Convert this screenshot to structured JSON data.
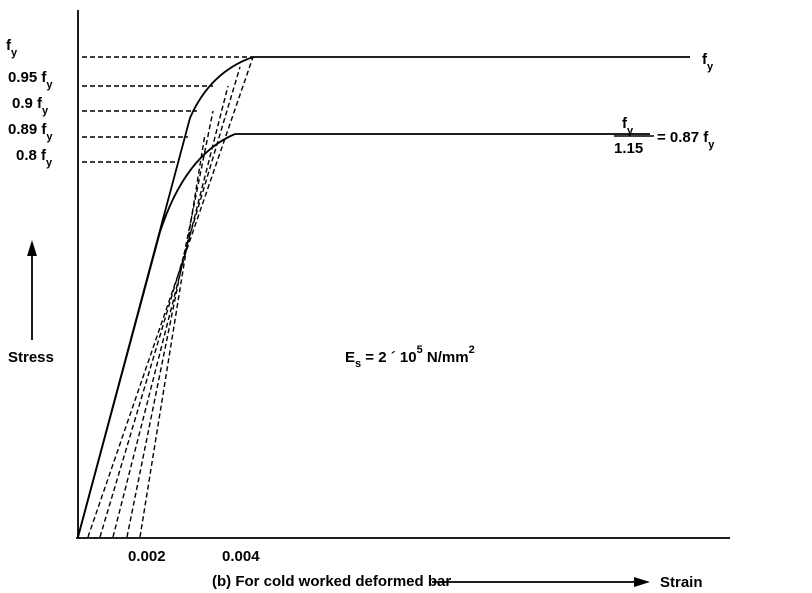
{
  "diagram": {
    "y_labels": [
      {
        "main": "f",
        "sub": "y"
      },
      {
        "main": "0.95 f",
        "sub": "y"
      },
      {
        "main": "0.9 f",
        "sub": "y"
      },
      {
        "main": "0.89 f",
        "sub": "y"
      },
      {
        "main": "0.8 f",
        "sub": "y"
      }
    ],
    "y_axis_label": "Stress",
    "x_ticks": [
      "0.002",
      "0.004"
    ],
    "x_axis_label": "Strain",
    "caption": "(b) For cold worked deformed bar",
    "upper_line_label": {
      "main": "f",
      "sub": "y"
    },
    "lower_line_label": {
      "numerator_main": "f",
      "numerator_sub": "y",
      "denominator": "1.15",
      "rhs_main": "= 0.87 f",
      "rhs_sub": "y"
    },
    "modulus": {
      "main": "E",
      "sub": "s",
      "mid": " = 2 ´ 10",
      "sup": "5",
      "unit": " N/mm",
      "unit_sup": "2"
    }
  }
}
